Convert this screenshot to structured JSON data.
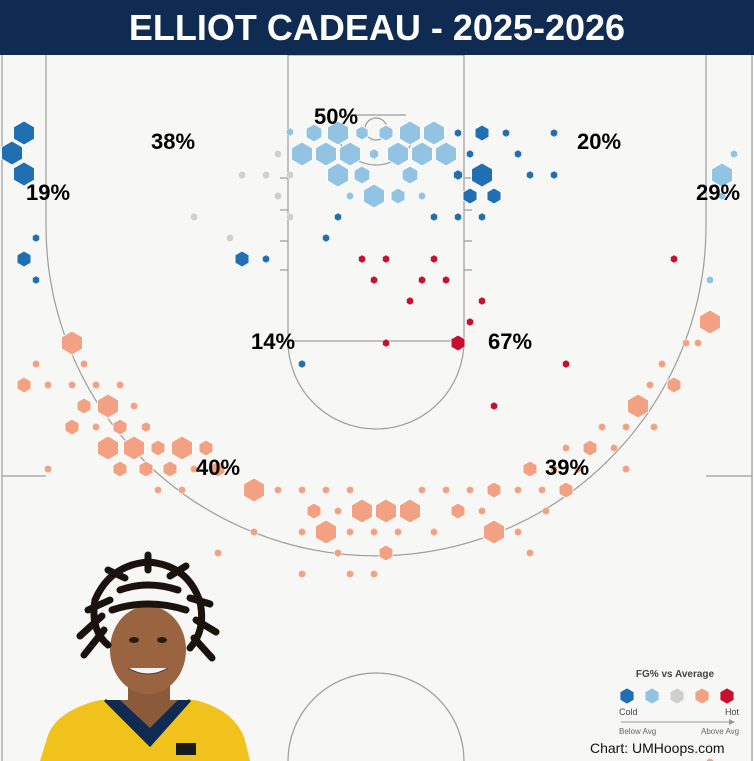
{
  "title": "ELLIOT CADEAU - 2025-2026",
  "credit": "Chart: UMHoops.com",
  "legend": {
    "title": "FG% vs Average",
    "cold_label": "Cold",
    "hot_label": "Hot",
    "below_label": "Below Avg",
    "above_label": "Above Avg",
    "colors": [
      "#1f6fb2",
      "#93c3e2",
      "#cfcfcf",
      "#f2a282",
      "#c8102e"
    ]
  },
  "chart_data": {
    "type": "hexbin-shot-chart",
    "zone_labels": [
      {
        "zone": "left-corner-midrange",
        "value": "19%"
      },
      {
        "zone": "left-wing-midrange",
        "value": "38%"
      },
      {
        "zone": "paint-top",
        "value": "50%"
      },
      {
        "zone": "right-wing-midrange",
        "value": "20%"
      },
      {
        "zone": "right-corner-midrange",
        "value": "29%"
      },
      {
        "zone": "left-elbow",
        "value": "14%"
      },
      {
        "zone": "right-elbow",
        "value": "67%"
      },
      {
        "zone": "left-three",
        "value": "40%"
      },
      {
        "zone": "right-three",
        "value": "39%"
      }
    ],
    "color_scale": [
      "cold",
      "below",
      "average",
      "above",
      "hot"
    ],
    "hexes": [
      [
        24,
        133,
        12,
        "cold"
      ],
      [
        12,
        153,
        12,
        "cold"
      ],
      [
        24,
        174,
        12,
        "cold"
      ],
      [
        36,
        238,
        4,
        "cold"
      ],
      [
        24,
        259,
        8,
        "cold"
      ],
      [
        36,
        280,
        4,
        "cold"
      ],
      [
        290,
        132,
        4,
        "below"
      ],
      [
        314,
        133,
        9,
        "below"
      ],
      [
        338,
        133,
        12,
        "below"
      ],
      [
        362,
        133,
        7,
        "below"
      ],
      [
        386,
        133,
        8,
        "below"
      ],
      [
        410,
        133,
        12,
        "below"
      ],
      [
        434,
        133,
        12,
        "below"
      ],
      [
        458,
        133,
        4,
        "cold"
      ],
      [
        482,
        133,
        8,
        "cold"
      ],
      [
        506,
        133,
        4,
        "cold"
      ],
      [
        554,
        133,
        4,
        "cold"
      ],
      [
        278,
        154,
        4,
        "average"
      ],
      [
        302,
        154,
        12,
        "below"
      ],
      [
        326,
        154,
        12,
        "below"
      ],
      [
        350,
        154,
        12,
        "below"
      ],
      [
        374,
        154,
        5,
        "below"
      ],
      [
        398,
        154,
        12,
        "below"
      ],
      [
        422,
        154,
        12,
        "below"
      ],
      [
        446,
        154,
        12,
        "below"
      ],
      [
        470,
        154,
        4,
        "cold"
      ],
      [
        518,
        154,
        4,
        "cold"
      ],
      [
        734,
        154,
        4,
        "below"
      ],
      [
        242,
        175,
        4,
        "average"
      ],
      [
        266,
        175,
        4,
        "average"
      ],
      [
        290,
        175,
        4,
        "average"
      ],
      [
        338,
        175,
        12,
        "below"
      ],
      [
        362,
        175,
        9,
        "below"
      ],
      [
        410,
        175,
        9,
        "below"
      ],
      [
        458,
        175,
        5,
        "cold"
      ],
      [
        482,
        175,
        12,
        "cold"
      ],
      [
        530,
        175,
        4,
        "cold"
      ],
      [
        554,
        175,
        4,
        "cold"
      ],
      [
        722,
        175,
        12,
        "below"
      ],
      [
        278,
        196,
        4,
        "average"
      ],
      [
        350,
        196,
        4,
        "below"
      ],
      [
        374,
        196,
        12,
        "below"
      ],
      [
        398,
        196,
        8,
        "below"
      ],
      [
        422,
        196,
        4,
        "below"
      ],
      [
        470,
        196,
        8,
        "cold"
      ],
      [
        494,
        196,
        8,
        "cold"
      ],
      [
        722,
        196,
        4,
        "below"
      ],
      [
        194,
        217,
        4,
        "average"
      ],
      [
        290,
        217,
        4,
        "average"
      ],
      [
        338,
        217,
        4,
        "cold"
      ],
      [
        434,
        217,
        4,
        "cold"
      ],
      [
        458,
        217,
        4,
        "cold"
      ],
      [
        482,
        217,
        4,
        "cold"
      ],
      [
        230,
        238,
        4,
        "average"
      ],
      [
        326,
        238,
        4,
        "cold"
      ],
      [
        242,
        259,
        8,
        "cold"
      ],
      [
        266,
        259,
        4,
        "cold"
      ],
      [
        362,
        259,
        4,
        "hot"
      ],
      [
        386,
        259,
        4,
        "hot"
      ],
      [
        434,
        259,
        4,
        "hot"
      ],
      [
        674,
        259,
        4,
        "hot"
      ],
      [
        374,
        280,
        4,
        "hot"
      ],
      [
        422,
        280,
        4,
        "hot"
      ],
      [
        446,
        280,
        4,
        "hot"
      ],
      [
        710,
        280,
        4,
        "below"
      ],
      [
        410,
        301,
        4,
        "hot"
      ],
      [
        482,
        301,
        4,
        "hot"
      ],
      [
        470,
        322,
        4,
        "hot"
      ],
      [
        710,
        322,
        12,
        "above"
      ],
      [
        72,
        343,
        12,
        "above"
      ],
      [
        386,
        343,
        4,
        "hot"
      ],
      [
        458,
        343,
        8,
        "hot"
      ],
      [
        686,
        343,
        4,
        "above"
      ],
      [
        698,
        343,
        4,
        "above"
      ],
      [
        36,
        364,
        4,
        "above"
      ],
      [
        84,
        364,
        4,
        "above"
      ],
      [
        302,
        364,
        4,
        "cold"
      ],
      [
        566,
        364,
        4,
        "hot"
      ],
      [
        662,
        364,
        4,
        "above"
      ],
      [
        24,
        385,
        8,
        "above"
      ],
      [
        48,
        385,
        4,
        "above"
      ],
      [
        72,
        385,
        4,
        "above"
      ],
      [
        96,
        385,
        4,
        "above"
      ],
      [
        120,
        385,
        4,
        "above"
      ],
      [
        650,
        385,
        4,
        "above"
      ],
      [
        674,
        385,
        8,
        "above"
      ],
      [
        84,
        406,
        8,
        "above"
      ],
      [
        108,
        406,
        12,
        "above"
      ],
      [
        134,
        406,
        4,
        "above"
      ],
      [
        494,
        406,
        4,
        "hot"
      ],
      [
        638,
        406,
        12,
        "above"
      ],
      [
        72,
        427,
        8,
        "above"
      ],
      [
        96,
        427,
        4,
        "above"
      ],
      [
        120,
        427,
        8,
        "above"
      ],
      [
        146,
        427,
        5,
        "above"
      ],
      [
        602,
        427,
        4,
        "above"
      ],
      [
        626,
        427,
        4,
        "above"
      ],
      [
        654,
        427,
        4,
        "above"
      ],
      [
        108,
        448,
        12,
        "above"
      ],
      [
        134,
        448,
        12,
        "above"
      ],
      [
        158,
        448,
        8,
        "above"
      ],
      [
        182,
        448,
        12,
        "above"
      ],
      [
        206,
        448,
        8,
        "above"
      ],
      [
        566,
        448,
        4,
        "above"
      ],
      [
        590,
        448,
        8,
        "above"
      ],
      [
        614,
        448,
        4,
        "above"
      ],
      [
        48,
        469,
        4,
        "above"
      ],
      [
        120,
        469,
        8,
        "above"
      ],
      [
        146,
        469,
        8,
        "above"
      ],
      [
        170,
        469,
        8,
        "above"
      ],
      [
        194,
        469,
        4,
        "above"
      ],
      [
        218,
        469,
        8,
        "above"
      ],
      [
        530,
        469,
        8,
        "above"
      ],
      [
        554,
        469,
        4,
        "above"
      ],
      [
        578,
        469,
        4,
        "above"
      ],
      [
        626,
        469,
        4,
        "above"
      ],
      [
        158,
        490,
        4,
        "above"
      ],
      [
        182,
        490,
        4,
        "above"
      ],
      [
        254,
        490,
        12,
        "above"
      ],
      [
        278,
        490,
        4,
        "above"
      ],
      [
        302,
        490,
        4,
        "above"
      ],
      [
        326,
        490,
        4,
        "above"
      ],
      [
        350,
        490,
        4,
        "above"
      ],
      [
        422,
        490,
        4,
        "above"
      ],
      [
        446,
        490,
        4,
        "above"
      ],
      [
        470,
        490,
        4,
        "above"
      ],
      [
        494,
        490,
        8,
        "above"
      ],
      [
        518,
        490,
        4,
        "above"
      ],
      [
        542,
        490,
        4,
        "above"
      ],
      [
        566,
        490,
        8,
        "above"
      ],
      [
        314,
        511,
        8,
        "above"
      ],
      [
        338,
        511,
        4,
        "above"
      ],
      [
        362,
        511,
        12,
        "above"
      ],
      [
        386,
        511,
        12,
        "above"
      ],
      [
        410,
        511,
        12,
        "above"
      ],
      [
        458,
        511,
        8,
        "above"
      ],
      [
        482,
        511,
        4,
        "above"
      ],
      [
        546,
        511,
        4,
        "above"
      ],
      [
        254,
        532,
        4,
        "above"
      ],
      [
        302,
        532,
        4,
        "above"
      ],
      [
        326,
        532,
        12,
        "above"
      ],
      [
        350,
        532,
        4,
        "above"
      ],
      [
        374,
        532,
        4,
        "above"
      ],
      [
        398,
        532,
        4,
        "above"
      ],
      [
        434,
        532,
        4,
        "above"
      ],
      [
        494,
        532,
        12,
        "above"
      ],
      [
        518,
        532,
        4,
        "above"
      ],
      [
        218,
        553,
        4,
        "above"
      ],
      [
        338,
        553,
        4,
        "above"
      ],
      [
        386,
        553,
        8,
        "above"
      ],
      [
        530,
        553,
        4,
        "above"
      ],
      [
        302,
        574,
        4,
        "above"
      ],
      [
        350,
        574,
        4,
        "above"
      ],
      [
        374,
        574,
        4,
        "above"
      ],
      [
        710,
        762,
        4,
        "above"
      ]
    ]
  }
}
